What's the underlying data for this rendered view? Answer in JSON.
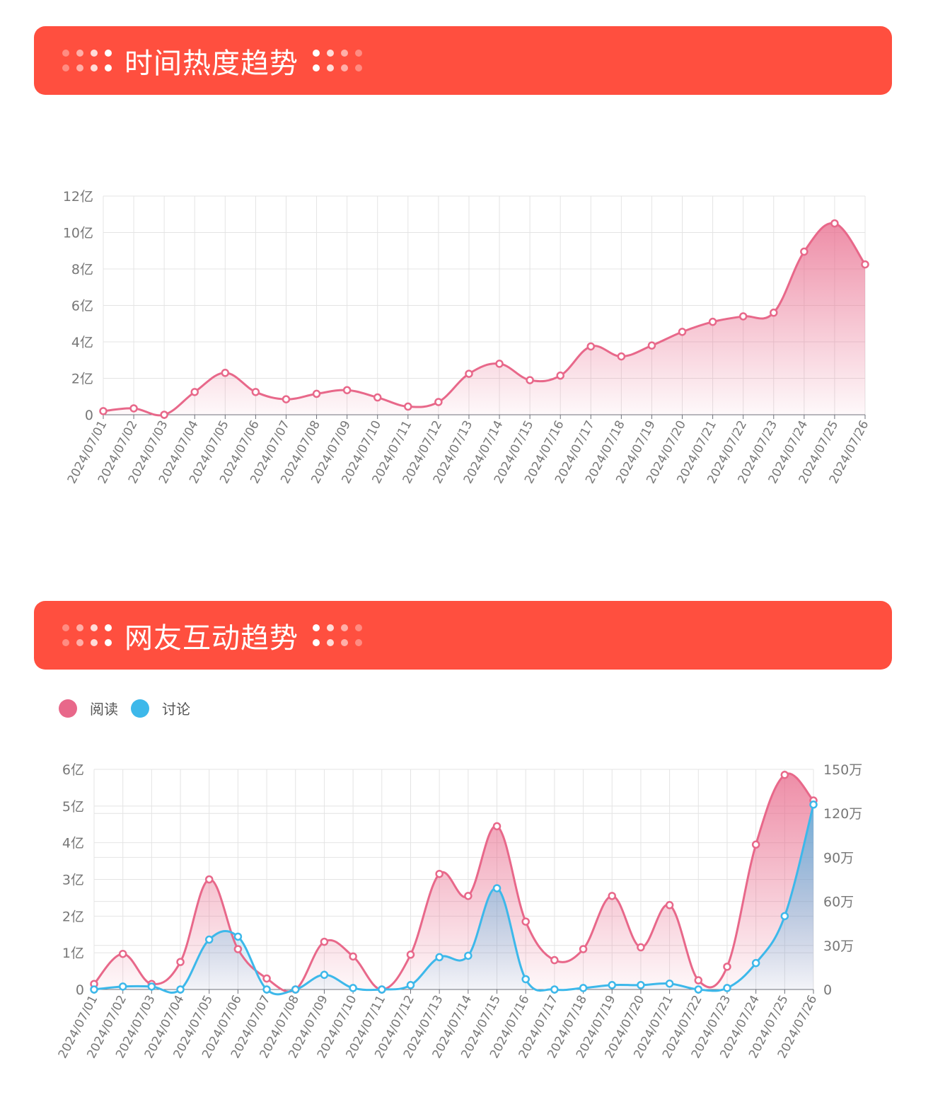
{
  "section1": {
    "title": "时间热度趋势"
  },
  "section2": {
    "title": "网友互动趋势"
  },
  "colors": {
    "banner": "#ff4f3f",
    "read": "#e8688a",
    "discuss": "#3db8ea"
  },
  "chart_data": [
    {
      "type": "area",
      "title": "",
      "categories": [
        "2024/07/01",
        "2024/07/02",
        "2024/07/03",
        "2024/07/04",
        "2024/07/05",
        "2024/07/06",
        "2024/07/07",
        "2024/07/08",
        "2024/07/09",
        "2024/07/10",
        "2024/07/11",
        "2024/07/12",
        "2024/07/13",
        "2024/07/14",
        "2024/07/15",
        "2024/07/16",
        "2024/07/17",
        "2024/07/18",
        "2024/07/19",
        "2024/07/20",
        "2024/07/21",
        "2024/07/22",
        "2024/07/23",
        "2024/07/24",
        "2024/07/25",
        "2024/07/26"
      ],
      "series": [
        {
          "values": [
            0.2,
            0.35,
            0.0,
            1.25,
            2.3,
            1.25,
            0.85,
            1.15,
            1.35,
            0.95,
            0.45,
            0.7,
            2.25,
            2.8,
            1.9,
            2.15,
            3.75,
            3.2,
            3.8,
            4.55,
            5.1,
            5.4,
            5.6,
            8.95,
            10.5,
            8.25
          ]
        }
      ],
      "y_ticks": [
        "0",
        "2亿",
        "4亿",
        "6亿",
        "8亿",
        "10亿",
        "12亿"
      ],
      "ylim": [
        0,
        12
      ],
      "grid": true
    },
    {
      "type": "area",
      "title": "",
      "categories": [
        "2024/07/01",
        "2024/07/02",
        "2024/07/03",
        "2024/07/04",
        "2024/07/05",
        "2024/07/06",
        "2024/07/07",
        "2024/07/08",
        "2024/07/09",
        "2024/07/10",
        "2024/07/11",
        "2024/07/12",
        "2024/07/13",
        "2024/07/14",
        "2024/07/15",
        "2024/07/16",
        "2024/07/17",
        "2024/07/18",
        "2024/07/19",
        "2024/07/20",
        "2024/07/21",
        "2024/07/22",
        "2024/07/23",
        "2024/07/24",
        "2024/07/25",
        "2024/07/26"
      ],
      "series": [
        {
          "name": "阅读",
          "axis": "left",
          "values": [
            0.15,
            0.97,
            0.15,
            0.75,
            3.0,
            1.1,
            0.3,
            0.0,
            1.3,
            0.9,
            0.0,
            0.95,
            3.15,
            2.55,
            4.45,
            1.85,
            0.8,
            1.1,
            2.55,
            1.15,
            2.3,
            0.25,
            0.62,
            3.95,
            5.85,
            5.15
          ]
        },
        {
          "name": "讨论",
          "axis": "right",
          "values": [
            0,
            2,
            2,
            0,
            34,
            36,
            0,
            0,
            10,
            1,
            0,
            3,
            22,
            23,
            69,
            7,
            0,
            1,
            3,
            3,
            4,
            0,
            1,
            18,
            50,
            126
          ]
        }
      ],
      "legend": [
        "阅读",
        "讨论"
      ],
      "legend_position": "top-left",
      "y_ticks_left": [
        "0",
        "1亿",
        "2亿",
        "3亿",
        "4亿",
        "5亿",
        "6亿"
      ],
      "y_ticks_right": [
        "0",
        "30万",
        "60万",
        "90万",
        "120万",
        "150万"
      ],
      "ylim_left": [
        0,
        6
      ],
      "ylim_right": [
        0,
        150
      ],
      "grid": true
    }
  ]
}
